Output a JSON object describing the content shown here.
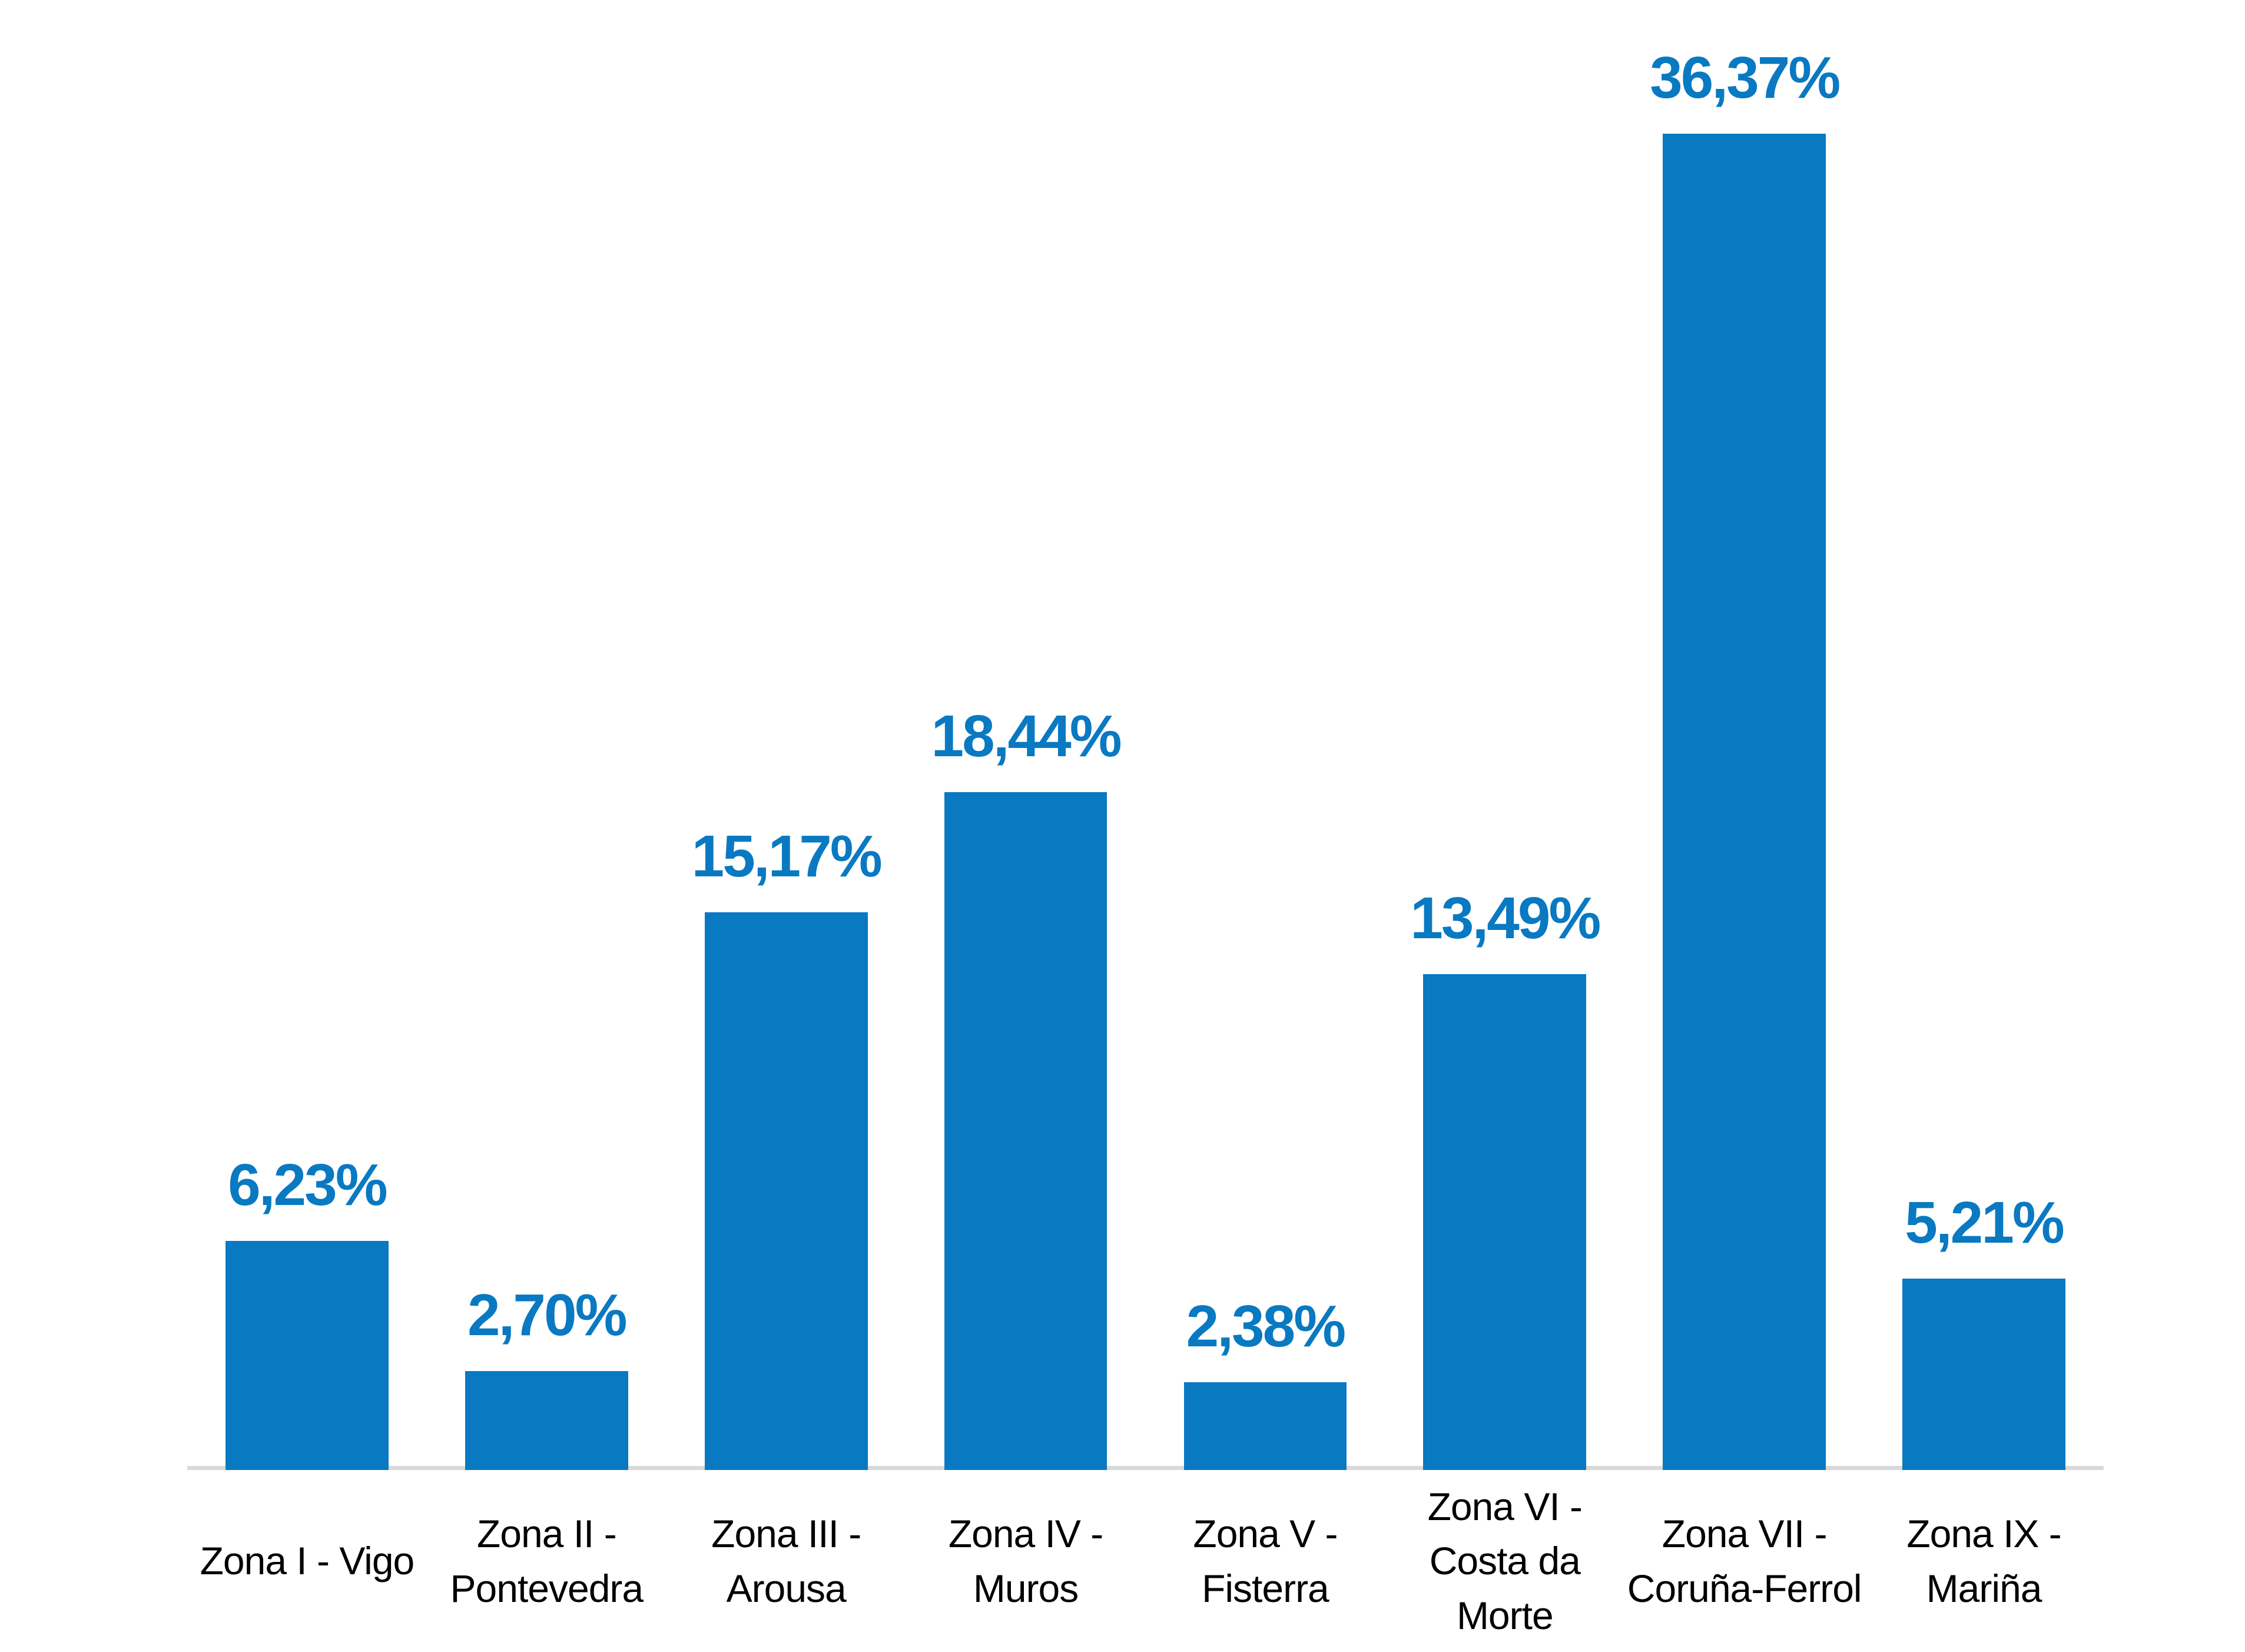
{
  "chart_data": {
    "type": "bar",
    "title": "",
    "xlabel": "",
    "ylabel": "",
    "categories": [
      "Zona I - Vigo",
      "Zona II - Pontevedra",
      "Zona III - Arousa",
      "Zona IV - Muros",
      "Zona V - Fisterra",
      "Zona VI - Costa da Morte",
      "Zona VII - Coruña-Ferrol",
      "Zona IX - Mariña"
    ],
    "categories_display": [
      "Zona I - Vigo",
      "Zona II -\nPontevedra",
      "Zona III -\nArousa",
      "Zona IV -\nMuros",
      "Zona V -\nFisterra",
      "Zona VI -\nCosta da\nMorte",
      "Zona VII -\nCoruña-Ferrol",
      "Zona IX -\nMariña"
    ],
    "values": [
      6.23,
      2.7,
      15.17,
      18.44,
      2.38,
      13.49,
      36.37,
      5.21
    ],
    "value_labels": [
      "6,23%",
      "2,70%",
      "15,17%",
      "18,44%",
      "2,38%",
      "13,49%",
      "36,37%",
      "5,21%"
    ],
    "ylim": [
      0,
      40
    ],
    "grid": false,
    "legend": "none",
    "colors": {
      "bar": "#0979c2",
      "value_label": "#0979c2",
      "category_label": "#000000",
      "axis_line": "#d9d9d9",
      "background": "#ffffff"
    }
  }
}
